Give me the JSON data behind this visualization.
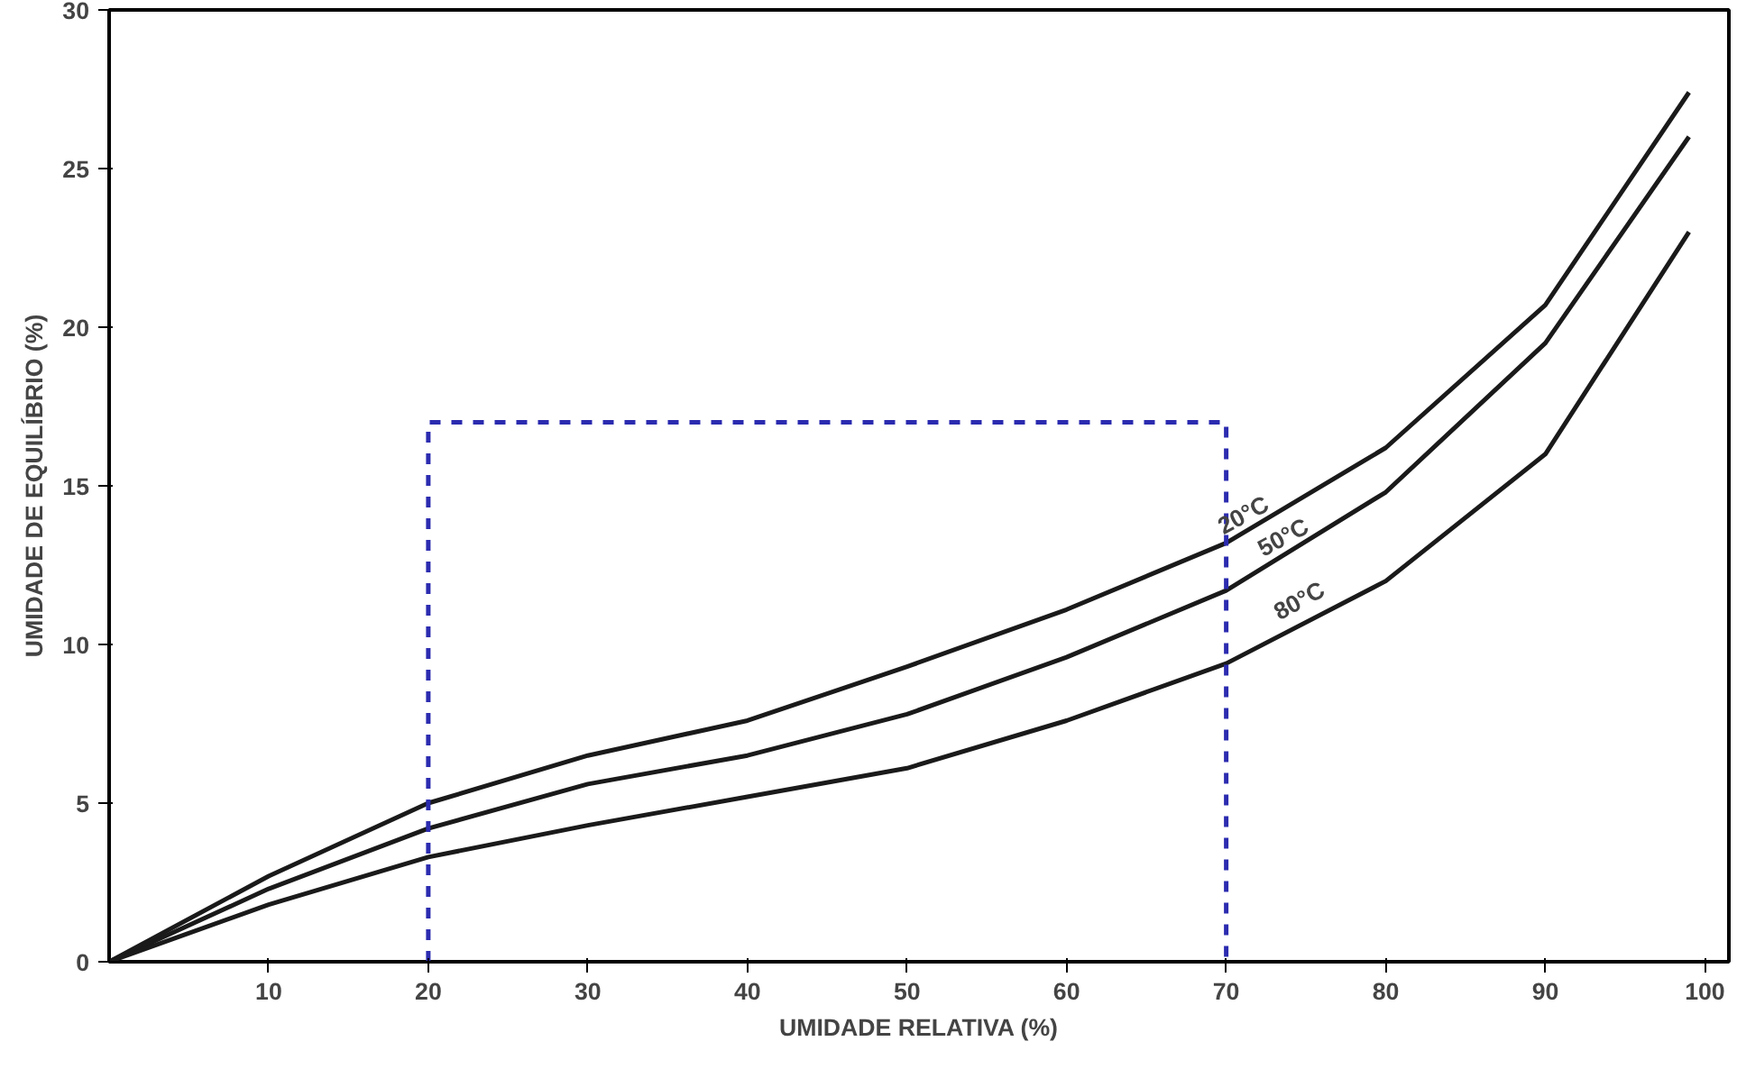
{
  "chart_data": {
    "type": "line",
    "xlabel": "UMIDADE RELATIVA (%)",
    "ylabel": "UMIDADE DE EQUILÍBRIO (%)",
    "xlim": [
      0,
      101.5
    ],
    "ylim": [
      0,
      30
    ],
    "xticks": [
      10,
      20,
      30,
      40,
      50,
      60,
      70,
      80,
      90,
      100
    ],
    "yticks": [
      0,
      5,
      10,
      15,
      20,
      25,
      30
    ],
    "grid": false,
    "series": [
      {
        "color": "#1a1a1a",
        "x": [
          0,
          10,
          20,
          30,
          40,
          50,
          60,
          70,
          80,
          90,
          99
        ],
        "values": [
          0,
          2.7,
          5.0,
          6.5,
          7.6,
          9.3,
          11.1,
          13.2,
          16.2,
          20.7,
          27.4
        ]
      },
      {
        "color": "#1a1a1a",
        "x": [
          0,
          10,
          20,
          30,
          40,
          50,
          60,
          70,
          80,
          90,
          99
        ],
        "values": [
          0,
          2.3,
          4.2,
          5.6,
          6.5,
          7.8,
          9.6,
          11.7,
          14.8,
          19.5,
          26.0
        ]
      },
      {
        "color": "#1a1a1a",
        "x": [
          0,
          10,
          20,
          30,
          40,
          50,
          60,
          70,
          80,
          90,
          99
        ],
        "values": [
          0,
          1.8,
          3.3,
          4.3,
          5.2,
          6.1,
          7.6,
          9.4,
          12.0,
          16.0,
          23.0
        ]
      },
      {
        "color": "#2b2bb0",
        "line_style": "dashed",
        "x": [
          20,
          20,
          70,
          70
        ],
        "values": [
          0,
          17,
          17,
          0
        ]
      }
    ],
    "annotations": [
      {
        "text": "20°C",
        "x": 70,
        "y": 13.3
      },
      {
        "text": "50°C",
        "x": 72.5,
        "y": 12.6
      },
      {
        "text": "80°C",
        "x": 73.5,
        "y": 10.6
      }
    ]
  }
}
